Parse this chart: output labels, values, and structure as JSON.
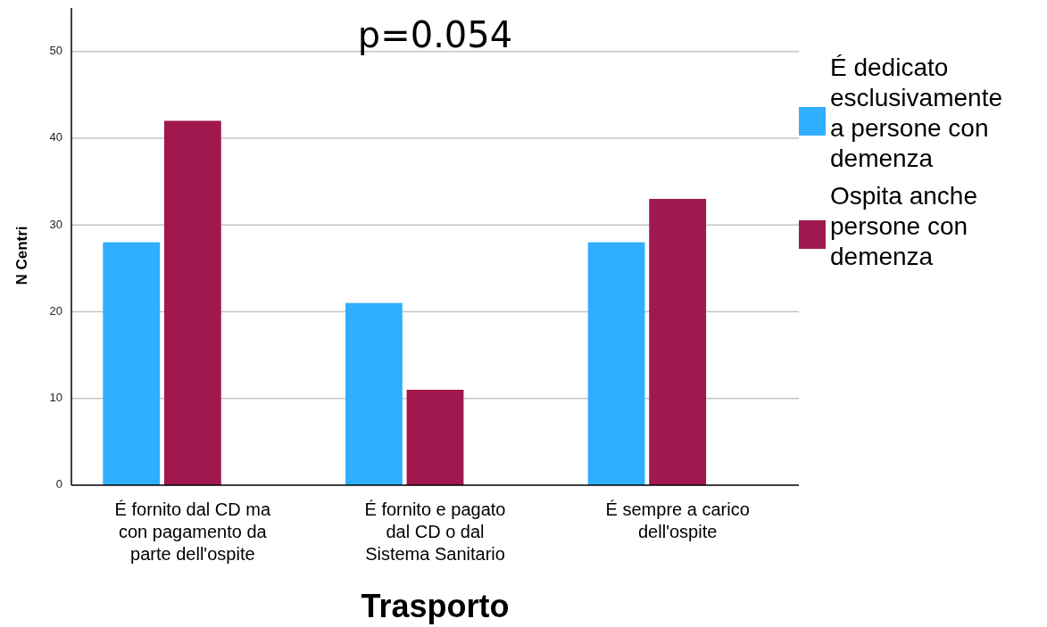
{
  "chart_data": {
    "type": "bar",
    "annotations": [
      "p=0.054"
    ],
    "xlabel": "Trasporto",
    "ylabel": "N Centri",
    "categories": [
      "É fornito dal CD ma\ncon pagamento da\nparte dell'ospite",
      "É fornito e pagato\ndal CD o dal\nSistema Sanitario",
      "É sempre a carico\ndell'ospite"
    ],
    "series": [
      {
        "name": "É dedicato\nesclusivamente\na persone con\ndemenza",
        "color": "#30aeff",
        "values": [
          28,
          21,
          28
        ]
      },
      {
        "name": "Ospita anche\npersone con\ndemenza",
        "color": "#a0184d",
        "values": [
          42,
          11,
          33
        ]
      }
    ],
    "ylim": [
      0,
      55
    ],
    "yticks": [
      0,
      10,
      20,
      30,
      40,
      50
    ],
    "grid": "y",
    "legend": "right"
  }
}
